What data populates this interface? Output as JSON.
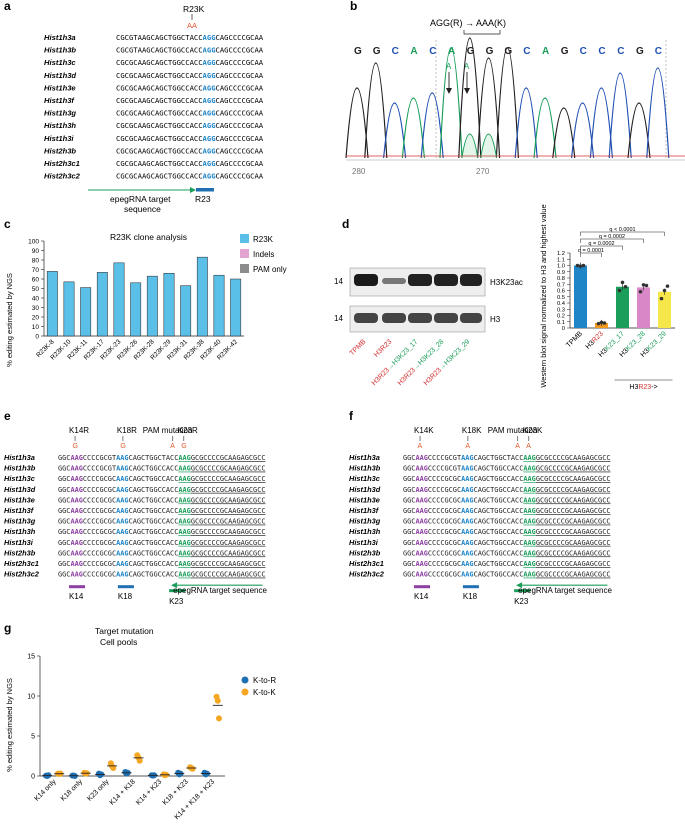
{
  "panels": {
    "a": {
      "label": "a",
      "mutation": "R23K",
      "mut_bases": "AA",
      "genes": [
        "Hist1h3a",
        "Hist1h3b",
        "Hist1h3c",
        "Hist1h3d",
        "Hist1h3e",
        "Hist1h3f",
        "Hist1h3g",
        "Hist1h3h",
        "Hist1h3i",
        "Hist2h3b",
        "Hist2h3c1",
        "Hist2h3c2"
      ],
      "seq_prefix": [
        "CGCGTAAGCAGCTGGCTACC",
        "CGCGTAAGCAGCTGGCCACC",
        "CGCGCAAGCAGCTGGCCACC",
        "CGCGCAAGCAGCTGGCCACC",
        "CGCGCAAGCAGCTGGCCACC",
        "CGCGCAAGCAGCTGGCCACC",
        "CGCGCAAGCAGCTGGCCACC",
        "CGCGCAAGCAGCTGGCCACC",
        "CGCGCAAGCAGCTGGCCACC",
        "CGCGCAAGCAGCTGGCCACC",
        "CGCGCAAGCAGCTGGCCACC",
        "CGCGCAAGCAGCTGGCCACC"
      ],
      "seq_codon": "AGG",
      "seq_suffix": [
        "CAGCCCCGCAA",
        "CAGCCCCGCAA",
        "CAGCCCCGCAA",
        "CAGCCCCGCAA",
        "CAGCCCCGCAA",
        "CAGCCCCGCAA",
        "CAGCCCCGCAA",
        "CAGCCCCGCAA",
        "CAGCCCCGCAA",
        "CAGCCCCGCAA",
        "CAGCCCCGCAA",
        "CAGCCCCGCAA"
      ],
      "target_label_1": "epegRNA target",
      "target_label_2": "sequence",
      "codon_label": "R23"
    },
    "b": {
      "label": "b",
      "header": "AGG(R) → AAA(K)",
      "bases": [
        "G",
        "G",
        "C",
        "A",
        "C",
        "A",
        "G",
        "G",
        "G",
        "C",
        "A",
        "G",
        "C",
        "C",
        "C",
        "G",
        "C"
      ],
      "edits": [
        "A",
        "A"
      ],
      "axis_labels": [
        "280",
        "270"
      ]
    },
    "c": {
      "label": "c",
      "legend": [
        "R23K",
        "Indels",
        "PAM only"
      ]
    },
    "d": {
      "label": "d",
      "mw": [
        "14",
        "14"
      ],
      "blot_labels": [
        "H3K23ac",
        "H3"
      ],
      "lanes": [
        {
          "a": "TPMB",
          "b": "",
          "c": ""
        },
        {
          "a": "H3",
          "b": "R23",
          "c": ""
        },
        {
          "a": "H3",
          "b": "R23",
          "c": "→H3K23_17"
        },
        {
          "a": "H3",
          "b": "R23",
          "c": "→H3K23_28"
        },
        {
          "a": "H3",
          "b": "R23",
          "c": "→H3K23_29"
        }
      ],
      "bar_group_label": "H3R23→"
    },
    "e": {
      "label": "e",
      "annotations": [
        "K14R",
        "K18R",
        "PAM mutation",
        "K23R"
      ],
      "annotation_bases": [
        "G",
        "G",
        "A",
        "G"
      ],
      "genes": [
        "Hist1h3a",
        "Hist1h3b",
        "Hist1h3c",
        "Hist1h3d",
        "Hist1h3e",
        "Hist1h3f",
        "Hist1h3g",
        "Hist1h3h",
        "Hist1h3i",
        "Hist2h3b",
        "Hist2h3c1",
        "Hist2h3c2"
      ],
      "seq": [
        [
          "GGC",
          "AAG",
          "CCCCGCGT",
          "AAG",
          "CAGCTGGCTACC",
          "AAG",
          "GCGCCCCGCAAGAGCGCC"
        ],
        [
          "GGC",
          "AAG",
          "CCCCGCGT",
          "AAG",
          "CAGCTGGCCACC",
          "AAG",
          "GCGCCCCGCAAGAGCGCC"
        ],
        [
          "GGC",
          "AAG",
          "CCCCGCGC",
          "AAG",
          "CAGCTGGCCACC",
          "AAG",
          "GCGCCCCGCAAGAGCGCC"
        ],
        [
          "GGC",
          "AAG",
          "CCCCGCGC",
          "AAG",
          "CAGCTGGCCACC",
          "AAG",
          "GCGCCCCGCAAGAGCGCC"
        ],
        [
          "GGC",
          "AAG",
          "CCCCGCGC",
          "AAG",
          "CAGCTGGCCACC",
          "AAG",
          "GCGCCCCGCAAGAGCGCC"
        ],
        [
          "GGC",
          "AAG",
          "CCCCGCGC",
          "AAG",
          "CAGCTGGCCACC",
          "AAG",
          "GCGCCCCGCAAGAGCGCC"
        ],
        [
          "GGC",
          "AAG",
          "CCCCGCGC",
          "AAG",
          "CAGCTGGCCACC",
          "AAG",
          "GCGCCCCGCAAGAGCGCC"
        ],
        [
          "GGC",
          "AAG",
          "CCCCGCGC",
          "AAG",
          "CAGCTGGCCACC",
          "AAG",
          "GCGCCCCGCAAGAGCGCC"
        ],
        [
          "GGC",
          "AAG",
          "CCCCGCGC",
          "AAG",
          "CAGCTGGCCACC",
          "AAG",
          "GCGCCCCGCAAGAGCGCC"
        ],
        [
          "GGC",
          "AAG",
          "CCCCGCGC",
          "AAG",
          "CAGCTGGCCACC",
          "AAG",
          "GCGCCCCGCAAGAGCGCC"
        ],
        [
          "GGC",
          "AAG",
          "CCCCGCGC",
          "AAG",
          "CAGCTGGCCACC",
          "AAG",
          "GCGCCCCGCAAGAGCGCC"
        ],
        [
          "GGC",
          "AAG",
          "CCCCGCGC",
          "AAG",
          "CAGCTGGCCACC",
          "AAG",
          "GCGCCCCGCAAGAGCGCC"
        ]
      ],
      "codon_labels": [
        "K14",
        "K18",
        "K23"
      ],
      "target_label": "epegRNA target sequence"
    },
    "f": {
      "label": "f",
      "annotations": [
        "K14K",
        "K18K",
        "PAM mutation",
        "K23K"
      ],
      "annotation_bases": [
        "A",
        "A",
        "A",
        "A"
      ],
      "codon_labels": [
        "K14",
        "K18",
        "K23"
      ],
      "target_label": "epegRNA target sequence"
    },
    "g": {
      "label": "g"
    }
  },
  "chart_data": [
    {
      "type": "bar",
      "panel": "c",
      "title": "R23K clone analysis",
      "ylabel": "% editing estimated by NGS",
      "xlabel": "",
      "categories": [
        "R23K-8",
        "R23K-10",
        "R23K-11",
        "R23K-17",
        "R23K-23",
        "R23K-26",
        "R23K-28",
        "R23K-29",
        "R23K-31",
        "R23K-38",
        "R23K-40",
        "R23K-42"
      ],
      "series": [
        {
          "name": "R23K",
          "color": "#5bc0e8",
          "values": [
            68,
            57,
            51,
            67,
            77,
            56,
            63,
            66,
            53,
            83,
            64,
            60
          ]
        },
        {
          "name": "Indels",
          "color": "#e3a4d2",
          "values": [
            0,
            0,
            0,
            0,
            0,
            0,
            0,
            0,
            0,
            0,
            0,
            0
          ]
        },
        {
          "name": "PAM only",
          "color": "#8c8c8c",
          "values": [
            0,
            0,
            0,
            0,
            0,
            0,
            0,
            0,
            0,
            0,
            0,
            0
          ]
        }
      ],
      "ylim": [
        0,
        100
      ],
      "yticks": [
        0,
        10,
        20,
        30,
        40,
        50,
        60,
        70,
        80,
        90,
        100
      ],
      "grid": false
    },
    {
      "type": "bar",
      "panel": "d",
      "title": "",
      "ylabel": "Western blot signal normalized to H3 and highest value",
      "categories": [
        "TPMB",
        "H3R23",
        "H3K23_17",
        "H3K23_28",
        "H3K23_29"
      ],
      "values": [
        1.0,
        0.08,
        0.66,
        0.65,
        0.58
      ],
      "points": [
        [
          1.0,
          0.99,
          1.0
        ],
        [
          0.07,
          0.09,
          0.08
        ],
        [
          0.6,
          0.73,
          0.66
        ],
        [
          0.58,
          0.69,
          0.68
        ],
        [
          0.47,
          0.6,
          0.67
        ]
      ],
      "colors": [
        "#1f85c7",
        "#f29a1f",
        "#1a9e5a",
        "#d987c6",
        "#f5e64a"
      ],
      "ylim": [
        0,
        1.2
      ],
      "yticks": [
        0,
        0.1,
        0.2,
        0.3,
        0.4,
        0.5,
        0.6,
        0.7,
        0.8,
        0.9,
        1.0,
        1.1,
        1.2
      ],
      "significance": [
        "q < 0.0001",
        "q = 0.0002",
        "q = 0.0002",
        "q = 0.0001"
      ],
      "group_label": "H3R23->"
    },
    {
      "type": "scatter",
      "panel": "g",
      "title": "Target mutation",
      "subtitle": "Cell pools",
      "ylabel": "% editing estimated by NGS",
      "categories": [
        "K14 only",
        "K18 only",
        "K23 only",
        "K14 + K18",
        "K14 + K23",
        "K18 + K23",
        "K14 + K18 + K23"
      ],
      "series": [
        {
          "name": "K-to-R",
          "color": "#1f6fb2",
          "values": [
            [
              0.05,
              0.0,
              0.1
            ],
            [
              0.05,
              0.05,
              0.0
            ],
            [
              0.3,
              0.1,
              0.2
            ],
            [
              0.5,
              0.3,
              0.4
            ],
            [
              0.1,
              0.05,
              0.1
            ],
            [
              0.4,
              0.2,
              0.3
            ],
            [
              0.4,
              0.2,
              0.3
            ]
          ]
        },
        {
          "name": "K-to-K",
          "color": "#f5a623",
          "values": [
            [
              0.3,
              0.25,
              0.3
            ],
            [
              0.4,
              0.3,
              0.35
            ],
            [
              1.6,
              1.2,
              1.0
            ],
            [
              2.6,
              2.3,
              1.9
            ],
            [
              0.2,
              0.1,
              0.15
            ],
            [
              1.1,
              1.0,
              0.9
            ],
            [
              9.9,
              9.4,
              7.2
            ]
          ]
        }
      ],
      "ylim": [
        0,
        15
      ],
      "yticks": [
        0,
        5,
        10,
        15
      ],
      "legend": "right"
    }
  ]
}
